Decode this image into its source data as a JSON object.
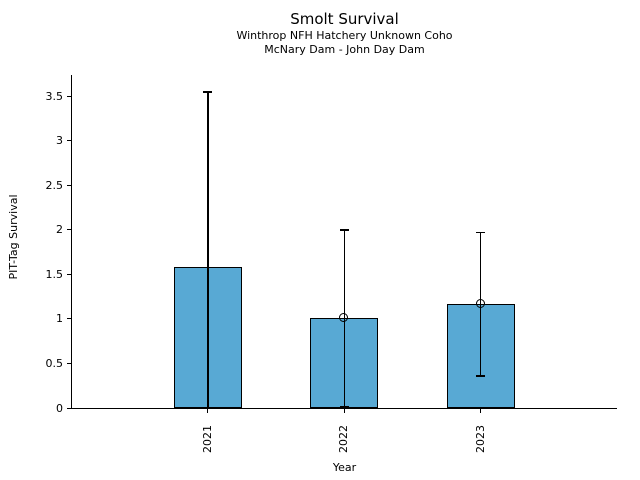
{
  "chart_data": {
    "type": "bar",
    "title": "Smolt Survival",
    "subtitle1": "Winthrop NFH Hatchery Unknown Coho",
    "subtitle2": "McNary Dam - John Day Dam",
    "xlabel": "Year",
    "ylabel": "PIT-Tag Survival",
    "categories": [
      "2021",
      "2022",
      "2023"
    ],
    "values": [
      1.58,
      1.01,
      1.17
    ],
    "error_low": [
      0,
      0.01,
      0.36
    ],
    "error_high": [
      3.55,
      2.0,
      1.97
    ],
    "markers": [
      null,
      1.01,
      1.17
    ],
    "cap_low": [
      false,
      true,
      true
    ],
    "cap_high": [
      true,
      true,
      true
    ],
    "yticks": [
      0,
      0.5,
      1,
      1.5,
      2,
      2.5,
      3,
      3.5
    ],
    "ytick_labels": [
      "0",
      "0.5",
      "1",
      "1.5",
      "2",
      "2.5",
      "3",
      "3.5"
    ],
    "ylim": [
      0,
      3.74
    ],
    "xlim": [
      -1,
      3
    ],
    "bar_rel_width": 0.5,
    "bar_color": "#58a9d4",
    "bar_edge_color": "#000000",
    "errorbar_color": "#000000",
    "text_color": "#000000",
    "grid": false,
    "legend": "none"
  }
}
